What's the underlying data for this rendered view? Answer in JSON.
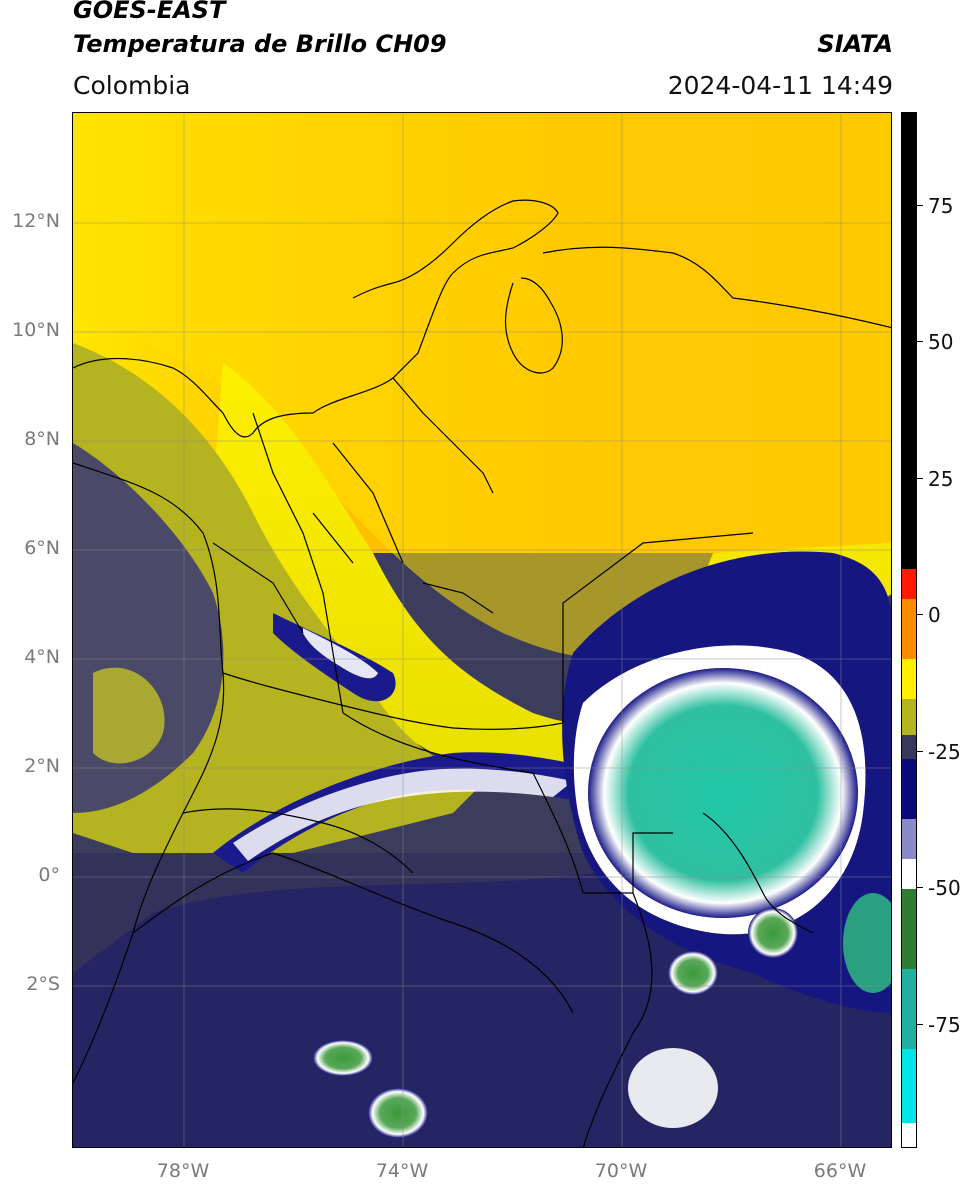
{
  "header": {
    "satellite": "GOES-EAST",
    "product": "Temperatura de Brillo CH09",
    "brand": "SIATA",
    "region": "Colombia",
    "datetime": "2024-04-11 14:49"
  },
  "map": {
    "lat_labels": [
      "12°N",
      "10°N",
      "8°N",
      "6°N",
      "4°N",
      "2°N",
      "0°",
      "2°S"
    ],
    "lon_labels": [
      "78°W",
      "74°W",
      "70°W",
      "66°W"
    ],
    "extent": {
      "lon_min": -80,
      "lon_max": -65,
      "lat_min": -5,
      "lat_max": 14
    },
    "grid": true
  },
  "colorbar": {
    "ticks": [
      "75",
      "50",
      "25",
      "0",
      "-25",
      "-50",
      "-75"
    ],
    "range": [
      -100,
      90
    ],
    "colors": {
      "black": "#000000",
      "red": "#ff1a00",
      "orange": "#ffa500",
      "yellow": "#ffef00",
      "olive": "#b4b41e",
      "dark_slate": "#37375a",
      "navy": "#0a0a7a",
      "white": "#ffffff",
      "green": "#2e7d32",
      "teal": "#20d0c0",
      "cyan": "#00e5e5"
    }
  }
}
